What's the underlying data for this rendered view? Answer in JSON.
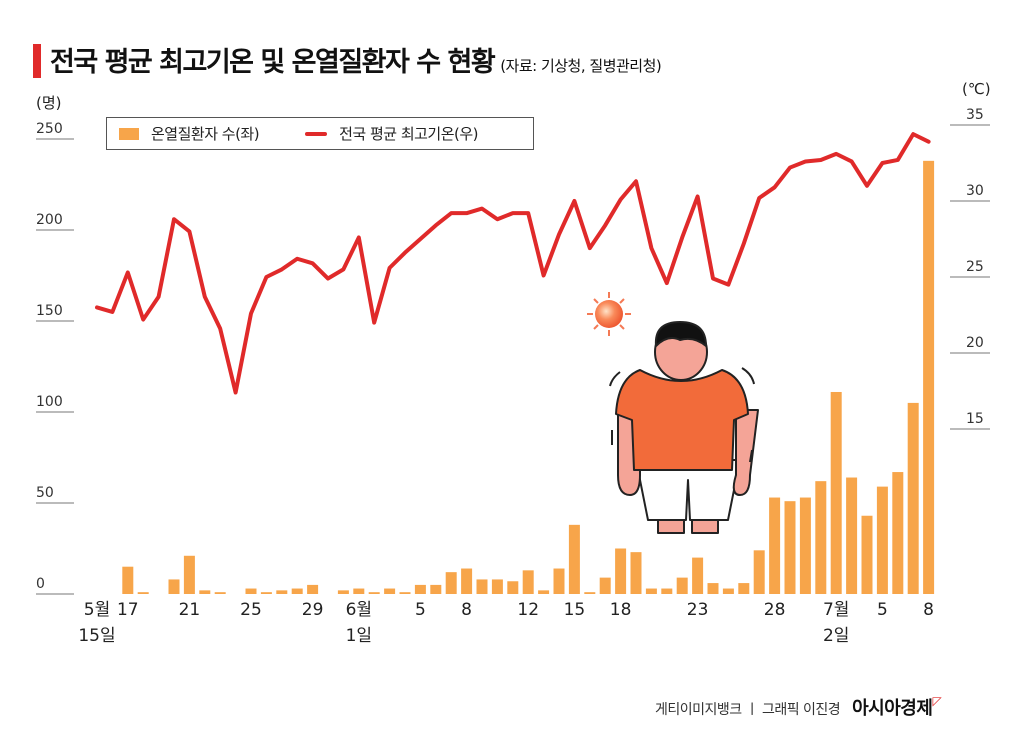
{
  "header": {
    "title": "전국 평균 최고기온 및 온열질환자 수 현황",
    "source": "(자료: 기상청, 질병관리청)"
  },
  "footer": {
    "credit": "게티이미지뱅크 ㅣ 그래픽 이진경",
    "brand": "아시아경제",
    "brand_mark": "◸"
  },
  "colors": {
    "bar": "#f7a54a",
    "line": "#e02a2a",
    "accent": "#e02a2a"
  },
  "chart_data": {
    "type": "bar+line",
    "title": "전국 평균 최고기온 및 온열질환자 수 현황",
    "y_left_label": "(명)",
    "y_right_label": "(℃)",
    "y_left_ticks": [
      "0",
      "50",
      "100",
      "150",
      "200",
      "250"
    ],
    "y_left_tick_values": [
      0,
      50,
      100,
      150,
      200,
      250
    ],
    "y_right_ticks": [
      "15",
      "20",
      "25",
      "30",
      "35"
    ],
    "y_right_tick_values": [
      15,
      20,
      25,
      30,
      35
    ],
    "ylim_left": [
      0,
      250
    ],
    "ylim_right": [
      15,
      35
    ],
    "legend": [
      "온열질환자 수(좌)",
      "전국 평균 최고기온(우)"
    ],
    "legend_position": "top-left",
    "x_start": "5월 15일",
    "x_end": "7월 8일",
    "x_ticks": [
      {
        "i": 0,
        "l1": "5월",
        "l2": "15일"
      },
      {
        "i": 2,
        "l1": "17",
        "l2": ""
      },
      {
        "i": 6,
        "l1": "21",
        "l2": ""
      },
      {
        "i": 10,
        "l1": "25",
        "l2": ""
      },
      {
        "i": 14,
        "l1": "29",
        "l2": ""
      },
      {
        "i": 17,
        "l1": "6월",
        "l2": "1일"
      },
      {
        "i": 21,
        "l1": "5",
        "l2": ""
      },
      {
        "i": 24,
        "l1": "8",
        "l2": ""
      },
      {
        "i": 28,
        "l1": "12",
        "l2": ""
      },
      {
        "i": 31,
        "l1": "15",
        "l2": ""
      },
      {
        "i": 34,
        "l1": "18",
        "l2": ""
      },
      {
        "i": 39,
        "l1": "23",
        "l2": ""
      },
      {
        "i": 44,
        "l1": "28",
        "l2": ""
      },
      {
        "i": 48,
        "l1": "7월",
        "l2": "2일"
      },
      {
        "i": 51,
        "l1": "5",
        "l2": ""
      },
      {
        "i": 54,
        "l1": "8",
        "l2": ""
      }
    ],
    "series": [
      {
        "name": "온열질환자 수(좌)",
        "axis": "left",
        "type": "bar",
        "values": [
          0,
          0,
          15,
          1,
          0,
          8,
          21,
          2,
          1,
          0,
          3,
          1,
          2,
          3,
          5,
          0,
          2,
          3,
          1,
          3,
          1,
          5,
          5,
          12,
          14,
          8,
          8,
          7,
          13,
          2,
          14,
          38,
          1,
          9,
          25,
          23,
          3,
          3,
          9,
          20,
          6,
          3,
          6,
          24,
          53,
          51,
          53,
          62,
          111,
          64,
          43,
          59,
          67,
          105,
          238
        ]
      },
      {
        "name": "전국 평균 최고기온(우)",
        "axis": "right",
        "type": "line",
        "values": [
          23.0,
          22.7,
          25.3,
          22.2,
          23.7,
          28.8,
          28.0,
          23.7,
          21.6,
          17.4,
          22.6,
          25.0,
          25.5,
          26.2,
          25.9,
          24.9,
          25.5,
          27.6,
          22.0,
          25.6,
          26.6,
          27.5,
          28.4,
          29.2,
          29.2,
          29.5,
          28.8,
          29.2,
          29.2,
          25.1,
          27.8,
          30.0,
          26.9,
          28.4,
          30.1,
          31.3,
          26.9,
          24.6,
          27.6,
          30.3,
          24.9,
          24.5,
          27.2,
          30.2,
          30.9,
          32.2,
          32.6,
          32.7,
          33.1,
          32.6,
          31.0,
          32.5,
          32.7,
          34.4,
          33.9
        ]
      }
    ]
  }
}
